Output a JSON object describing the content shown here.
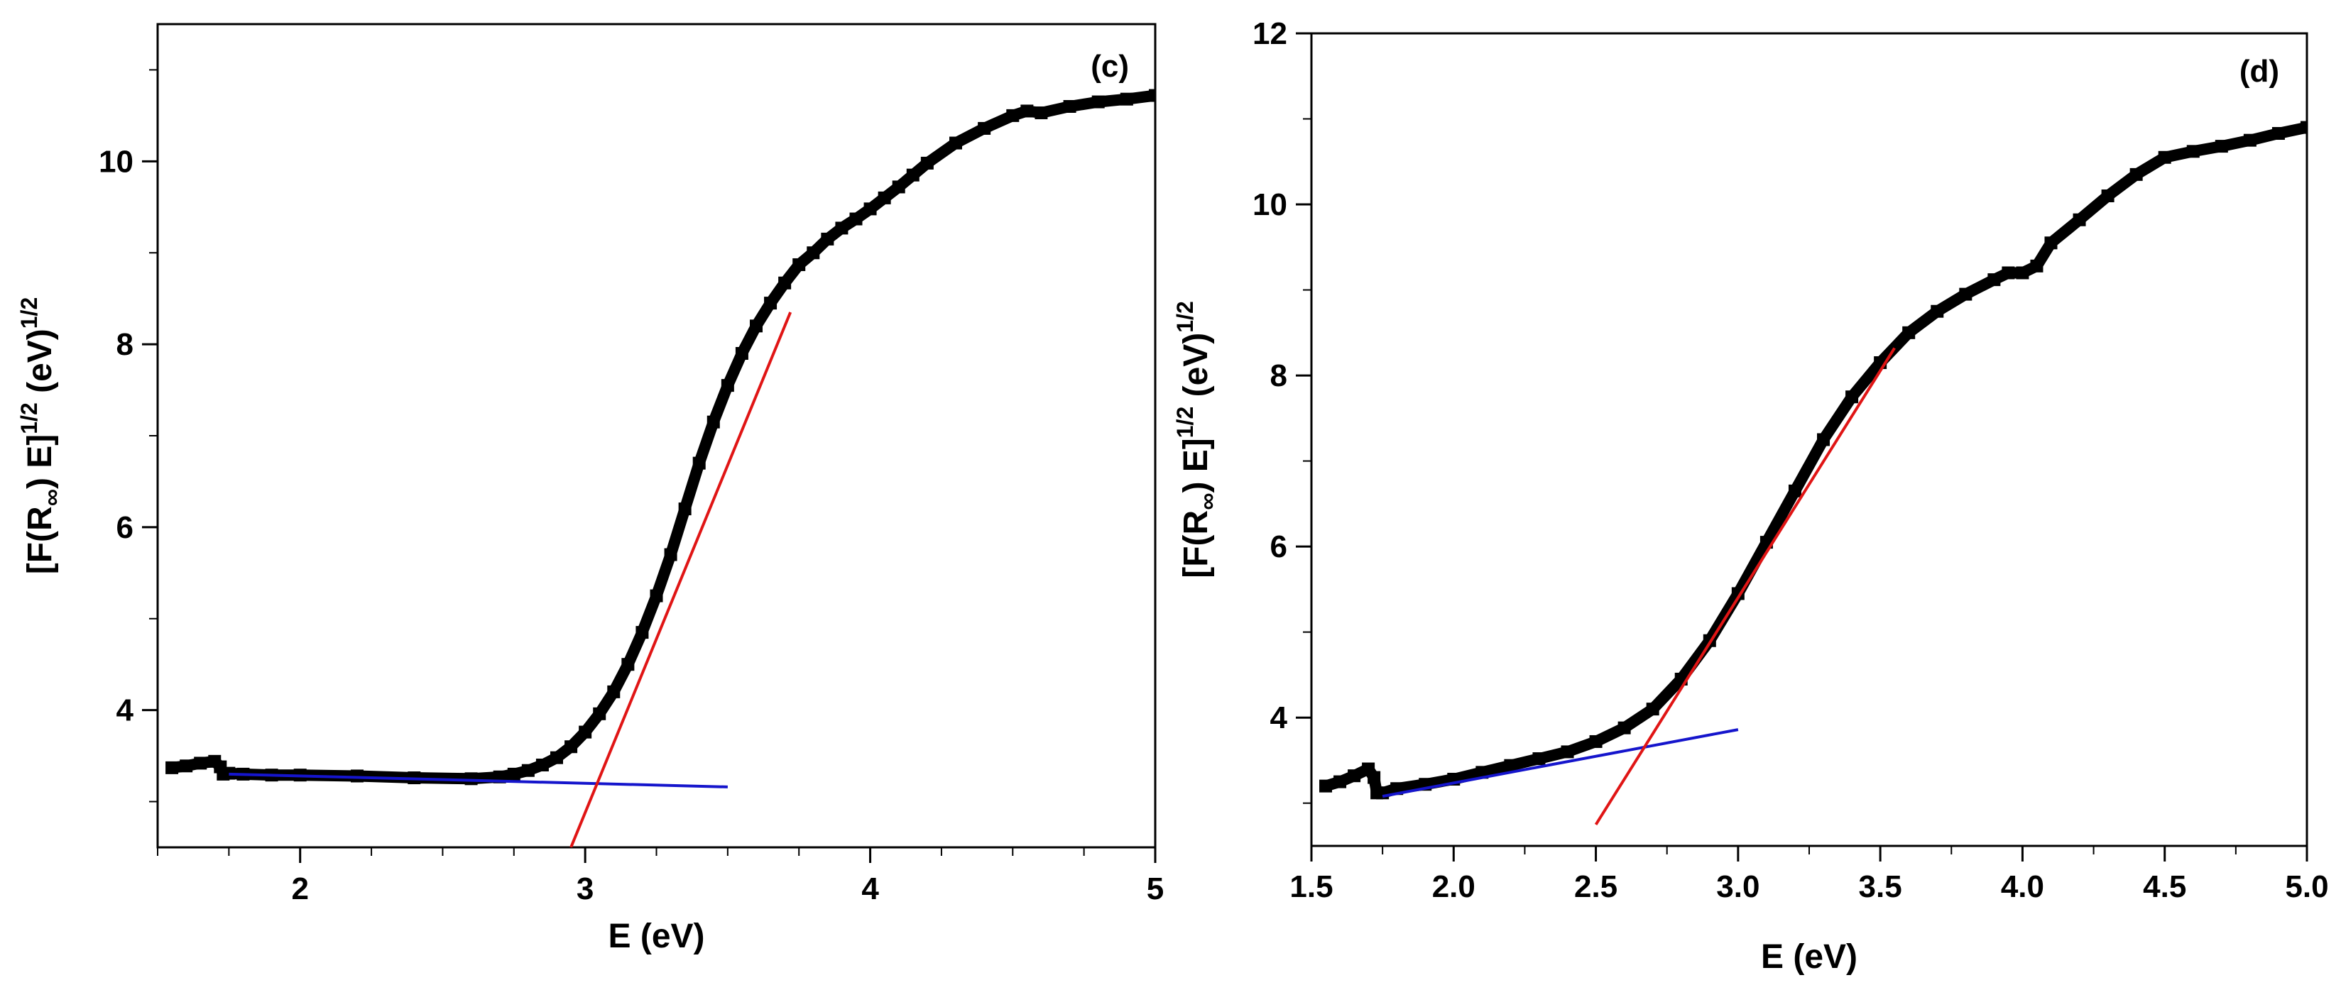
{
  "chart_data": [
    {
      "type": "line",
      "panel_label": "(c)",
      "xlabel": "E (eV)",
      "ylabel": {
        "main": "[F(R",
        "sub": "∞",
        "mid": ") E]",
        "sup1": "1/2",
        "unit": " (eV)",
        "sup2": "1/2"
      },
      "xlim": [
        1.5,
        5.0
      ],
      "ylim": [
        2.5,
        11.5
      ],
      "xticks": [
        2,
        3,
        4,
        5
      ],
      "xtick_labels": [
        "2",
        "3",
        "4",
        "5"
      ],
      "yticks": [
        4,
        6,
        8,
        10
      ],
      "ytick_labels": [
        "4",
        "6",
        "8",
        "10"
      ],
      "grid": false,
      "series": [
        {
          "color": "#000000",
          "style": "thick-marker-line",
          "x": [
            1.55,
            1.6,
            1.65,
            1.7,
            1.72,
            1.73,
            1.75,
            1.8,
            1.9,
            2.0,
            2.2,
            2.4,
            2.6,
            2.7,
            2.75,
            2.8,
            2.85,
            2.9,
            2.95,
            3.0,
            3.05,
            3.1,
            3.15,
            3.2,
            3.25,
            3.3,
            3.35,
            3.4,
            3.45,
            3.5,
            3.55,
            3.6,
            3.65,
            3.7,
            3.75,
            3.8,
            3.85,
            3.9,
            3.95,
            4.0,
            4.05,
            4.1,
            4.15,
            4.2,
            4.3,
            4.4,
            4.5,
            4.55,
            4.6,
            4.7,
            4.8,
            4.9,
            5.0
          ],
          "y": [
            3.37,
            3.39,
            3.42,
            3.44,
            3.38,
            3.3,
            3.31,
            3.3,
            3.29,
            3.29,
            3.28,
            3.26,
            3.25,
            3.27,
            3.3,
            3.34,
            3.4,
            3.48,
            3.6,
            3.76,
            3.96,
            4.2,
            4.5,
            4.85,
            5.25,
            5.7,
            6.2,
            6.7,
            7.15,
            7.55,
            7.9,
            8.2,
            8.45,
            8.67,
            8.87,
            9.0,
            9.15,
            9.27,
            9.37,
            9.48,
            9.6,
            9.72,
            9.85,
            9.98,
            10.2,
            10.36,
            10.5,
            10.55,
            10.53,
            10.6,
            10.65,
            10.68,
            10.72
          ]
        },
        {
          "color": "#1515cc",
          "style": "fit",
          "x": [
            1.75,
            3.5
          ],
          "y": [
            3.3,
            3.16
          ]
        },
        {
          "color": "#e01515",
          "style": "fit",
          "x": [
            2.95,
            3.72
          ],
          "y": [
            2.5,
            8.35
          ]
        }
      ]
    },
    {
      "type": "line",
      "panel_label": "(d)",
      "xlabel": "E (eV)",
      "ylabel": {
        "main": "[F(R",
        "sub": "∞",
        "mid": ") E]",
        "sup1": "1/2",
        "unit": " (eV)",
        "sup2": "1/2"
      },
      "xlim": [
        1.5,
        5.0
      ],
      "ylim": [
        2.5,
        12.0
      ],
      "xticks": [
        1.5,
        2.0,
        2.5,
        3.0,
        3.5,
        4.0,
        4.5,
        5.0
      ],
      "xtick_labels": [
        "1.5",
        "2.0",
        "2.5",
        "3.0",
        "3.5",
        "4.0",
        "4.5",
        "5.0"
      ],
      "yticks": [
        4,
        6,
        8,
        10,
        12
      ],
      "ytick_labels": [
        "4",
        "6",
        "8",
        "10",
        "12"
      ],
      "grid": false,
      "series": [
        {
          "color": "#000000",
          "style": "thick-marker-line",
          "x": [
            1.55,
            1.6,
            1.65,
            1.7,
            1.72,
            1.73,
            1.75,
            1.8,
            1.9,
            2.0,
            2.1,
            2.2,
            2.3,
            2.4,
            2.5,
            2.6,
            2.7,
            2.8,
            2.9,
            3.0,
            3.1,
            3.2,
            3.3,
            3.4,
            3.5,
            3.6,
            3.7,
            3.8,
            3.9,
            3.95,
            4.0,
            4.05,
            4.1,
            4.2,
            4.3,
            4.4,
            4.5,
            4.6,
            4.7,
            4.8,
            4.9,
            5.0
          ],
          "y": [
            3.2,
            3.25,
            3.32,
            3.4,
            3.3,
            3.12,
            3.12,
            3.17,
            3.22,
            3.28,
            3.36,
            3.44,
            3.52,
            3.6,
            3.72,
            3.88,
            4.1,
            4.45,
            4.9,
            5.45,
            6.05,
            6.65,
            7.25,
            7.75,
            8.15,
            8.5,
            8.75,
            8.95,
            9.12,
            9.2,
            9.2,
            9.28,
            9.55,
            9.82,
            10.1,
            10.35,
            10.55,
            10.62,
            10.68,
            10.75,
            10.83,
            10.9
          ]
        },
        {
          "color": "#1515cc",
          "style": "fit",
          "x": [
            1.75,
            3.0
          ],
          "y": [
            3.08,
            3.86
          ]
        },
        {
          "color": "#e01515",
          "style": "fit",
          "x": [
            2.5,
            3.55
          ],
          "y": [
            2.75,
            8.32
          ]
        }
      ]
    }
  ]
}
